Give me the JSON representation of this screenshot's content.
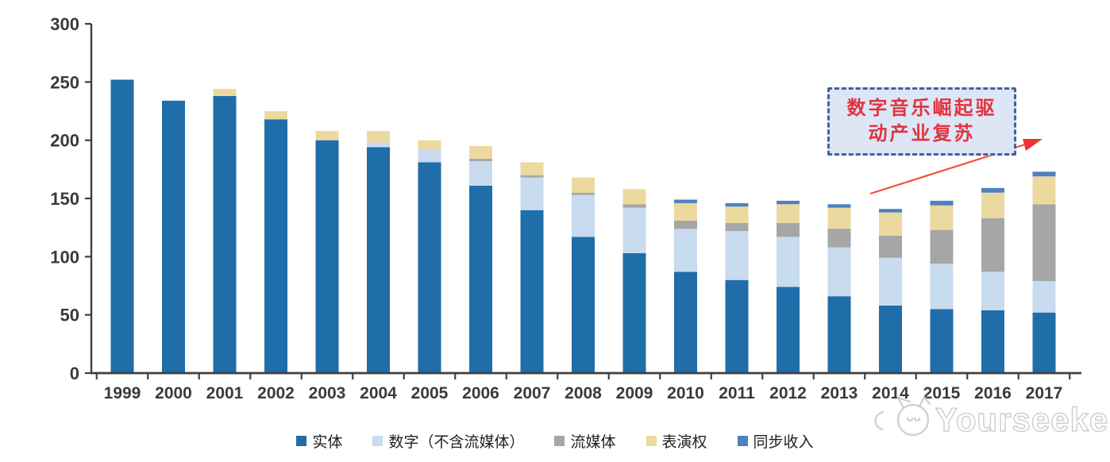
{
  "chart_data": {
    "type": "bar",
    "stacked": true,
    "title": "",
    "xlabel": "",
    "ylabel": "",
    "categories": [
      "1999",
      "2000",
      "2001",
      "2002",
      "2003",
      "2004",
      "2005",
      "2006",
      "2007",
      "2008",
      "2009",
      "2010",
      "2011",
      "2012",
      "2013",
      "2014",
      "2015",
      "2016",
      "2017"
    ],
    "series": [
      {
        "name": "实体",
        "color": "#1F6DA9",
        "values": [
          252,
          234,
          238,
          218,
          200,
          194,
          181,
          161,
          140,
          117,
          103,
          87,
          80,
          74,
          66,
          58,
          55,
          54,
          52
        ]
      },
      {
        "name": "数字（不含流媒体）",
        "color": "#C8DBEF",
        "values": [
          0,
          0,
          0,
          0,
          0,
          4,
          11,
          21,
          28,
          36,
          39,
          37,
          42,
          43,
          42,
          41,
          39,
          33,
          27
        ]
      },
      {
        "name": "流媒体",
        "color": "#A6A6A6",
        "values": [
          0,
          0,
          0,
          0,
          0,
          0,
          0,
          2,
          2,
          2,
          3,
          7,
          7,
          12,
          16,
          19,
          29,
          46,
          66
        ]
      },
      {
        "name": "表演权",
        "color": "#ECD9A0",
        "values": [
          0,
          0,
          6,
          7,
          8,
          10,
          8,
          11,
          11,
          13,
          13,
          15,
          14,
          16,
          18,
          20,
          21,
          22,
          24
        ]
      },
      {
        "name": "同步收入",
        "color": "#4E81BD",
        "values": [
          0,
          0,
          0,
          0,
          0,
          0,
          0,
          0,
          0,
          0,
          0,
          3,
          3,
          3,
          3,
          3,
          4,
          4,
          4
        ]
      }
    ],
    "ylim": [
      0,
      300
    ],
    "yticks": [
      0,
      50,
      100,
      150,
      200,
      250,
      300
    ],
    "grid": false,
    "legend_position": "bottom",
    "axis_color": "#3F3F3F",
    "tick_label_color": "#3A3A3A"
  },
  "annotation": {
    "line1": "数字音乐崛起驱",
    "line2": "动产业复苏",
    "text_color": "#E2333F",
    "box_border_color": "#44609F",
    "box_fill_color": "#DCE6F5",
    "arrow_color": "#F0503F"
  },
  "watermark": {
    "text": "Yourseeker",
    "logo": "cat-face-icon",
    "color": "#C8C8C8"
  }
}
